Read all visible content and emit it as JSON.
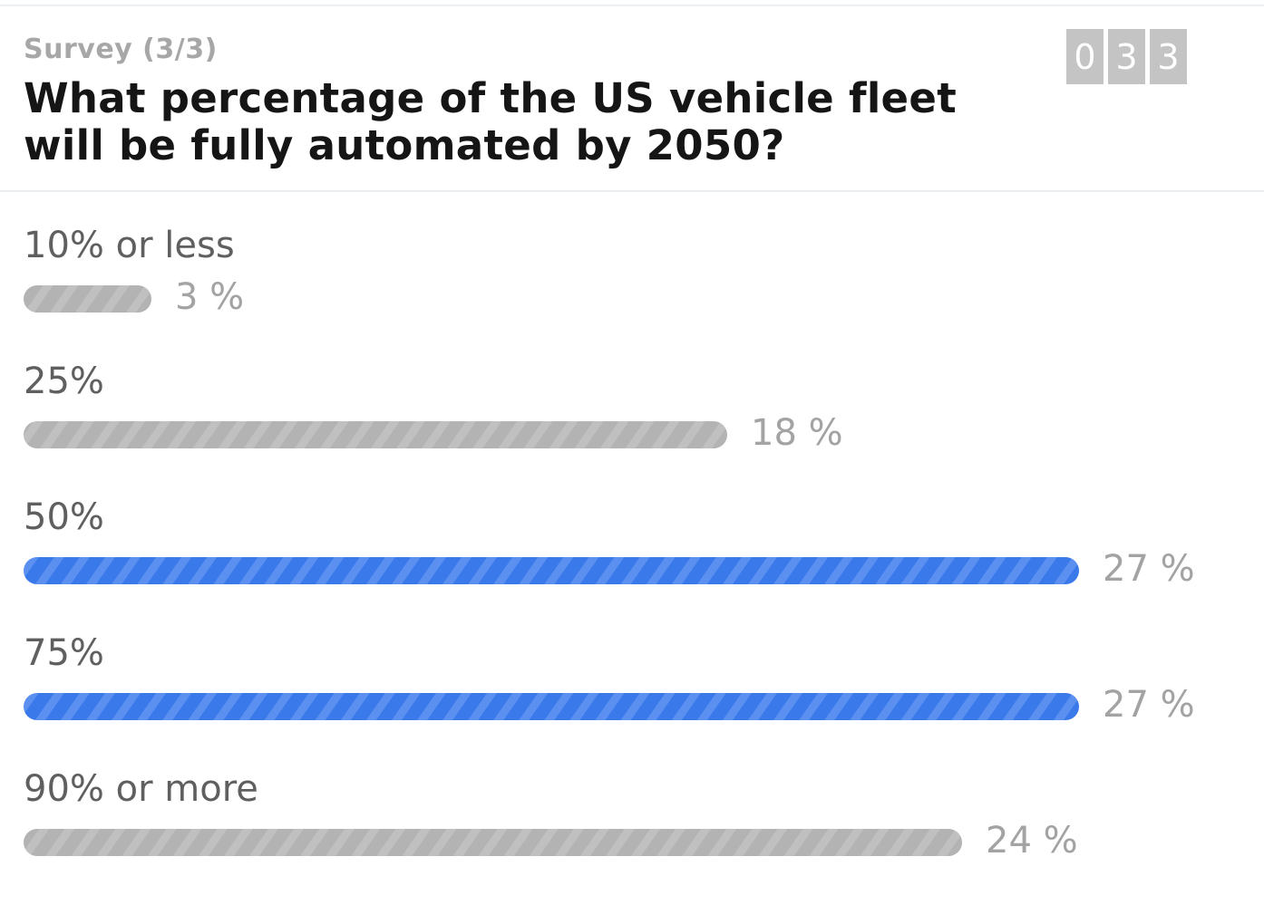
{
  "survey": {
    "step_label": "Survey (3/3)",
    "question": "What percentage of the US vehicle fleet will be fully automated by 2050?"
  },
  "counter": {
    "digits": [
      "0",
      "3",
      "3"
    ]
  },
  "colors": {
    "highlight": "#3a79ea",
    "default_bar": "#b3b3b3"
  },
  "options": [
    {
      "label": "10% or less",
      "percent": 3,
      "percent_text": "3 %",
      "highlighted": false
    },
    {
      "label": "25%",
      "percent": 18,
      "percent_text": "18 %",
      "highlighted": false
    },
    {
      "label": "50%",
      "percent": 27,
      "percent_text": "27 %",
      "highlighted": true
    },
    {
      "label": "75%",
      "percent": 27,
      "percent_text": "27 %",
      "highlighted": true
    },
    {
      "label": "90% or more",
      "percent": 24,
      "percent_text": "24 %",
      "highlighted": false
    }
  ]
}
